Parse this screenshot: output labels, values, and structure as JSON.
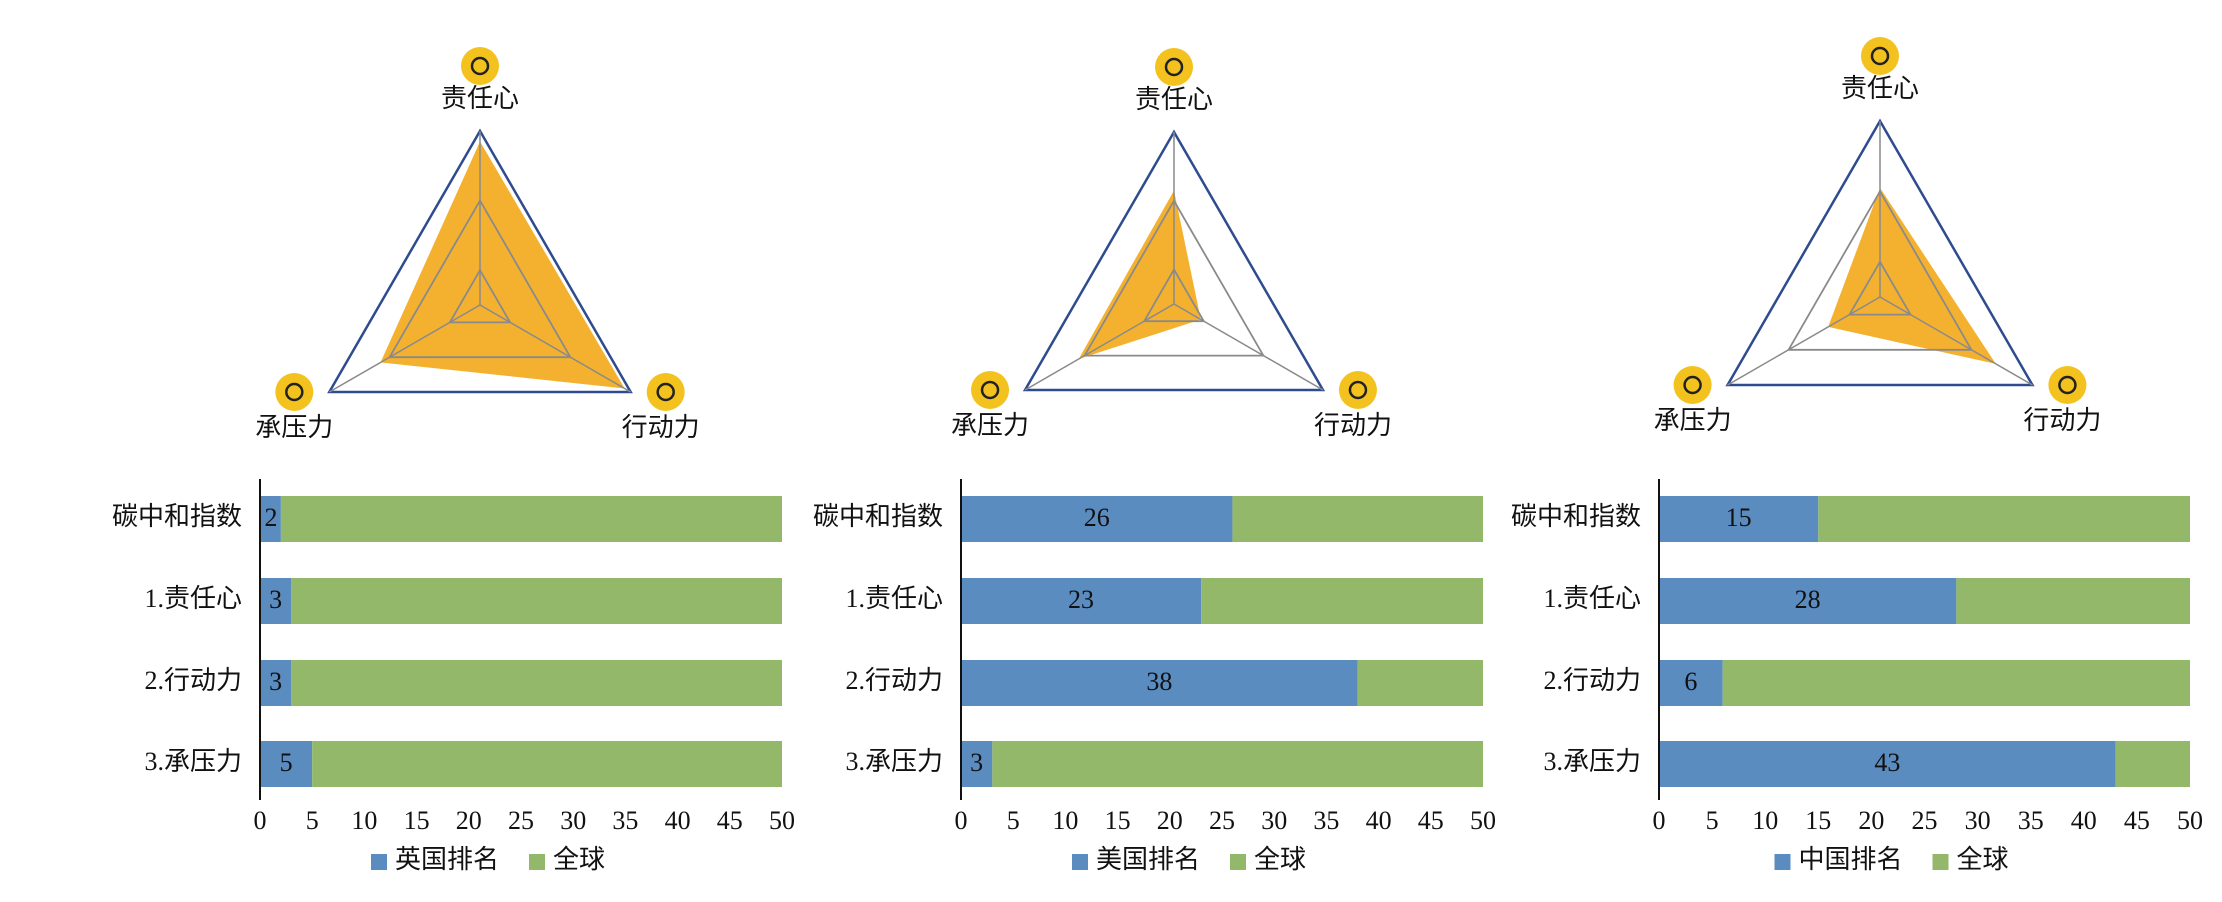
{
  "chart_data": [
    {
      "type": "radar",
      "categories": [
        "责任心",
        "行动力",
        "承压力"
      ],
      "values": [
        47,
        48,
        33
      ],
      "rlim": [
        0,
        50
      ],
      "rticks": [
        10,
        30,
        50
      ],
      "color": "#f4b12f"
    },
    {
      "type": "bar",
      "categories": [
        "碳中和指数",
        "1.责任心",
        "2.行动力",
        "3.承压力"
      ],
      "series": [
        {
          "name": "英国排名",
          "color": "#5b8cc0",
          "values": [
            2,
            3,
            3,
            5
          ]
        },
        {
          "name": "全球",
          "color": "#93b869",
          "values": [
            48,
            47,
            47,
            45
          ]
        }
      ],
      "xlim": [
        0,
        50
      ],
      "xticks": [
        0,
        5,
        10,
        15,
        20,
        25,
        30,
        35,
        40,
        45,
        50
      ]
    },
    {
      "type": "radar",
      "categories": [
        "责任心",
        "行动力",
        "承压力"
      ],
      "values": [
        33,
        9,
        32
      ],
      "rlim": [
        0,
        50
      ],
      "rticks": [
        10,
        30,
        50
      ],
      "color": "#f4b12f"
    },
    {
      "type": "bar",
      "categories": [
        "碳中和指数",
        "1.责任心",
        "2.行动力",
        "3.承压力"
      ],
      "series": [
        {
          "name": "美国排名",
          "color": "#5b8cc0",
          "values": [
            26,
            23,
            38,
            3
          ]
        },
        {
          "name": "全球",
          "color": "#93b869",
          "values": [
            24,
            27,
            12,
            47
          ]
        }
      ],
      "xlim": [
        0,
        50
      ],
      "xticks": [
        0,
        5,
        10,
        15,
        20,
        25,
        30,
        35,
        40,
        45,
        50
      ]
    },
    {
      "type": "radar",
      "categories": [
        "责任心",
        "行动力",
        "承压力"
      ],
      "values": [
        31,
        38,
        17
      ],
      "rlim": [
        0,
        50
      ],
      "rticks": [
        10,
        30,
        50
      ],
      "color": "#f4b12f"
    },
    {
      "type": "bar",
      "categories": [
        "碳中和指数",
        "1.责任心",
        "2.行动力",
        "3.承压力"
      ],
      "series": [
        {
          "name": "中国排名",
          "color": "#5b8cc0",
          "values": [
            15,
            28,
            6,
            43
          ]
        },
        {
          "name": "全球",
          "color": "#93b869",
          "values": [
            35,
            22,
            44,
            7
          ]
        }
      ],
      "xlim": [
        0,
        50
      ],
      "xticks": [
        0,
        5,
        10,
        15,
        20,
        25,
        30,
        35,
        40,
        45,
        50
      ]
    }
  ]
}
